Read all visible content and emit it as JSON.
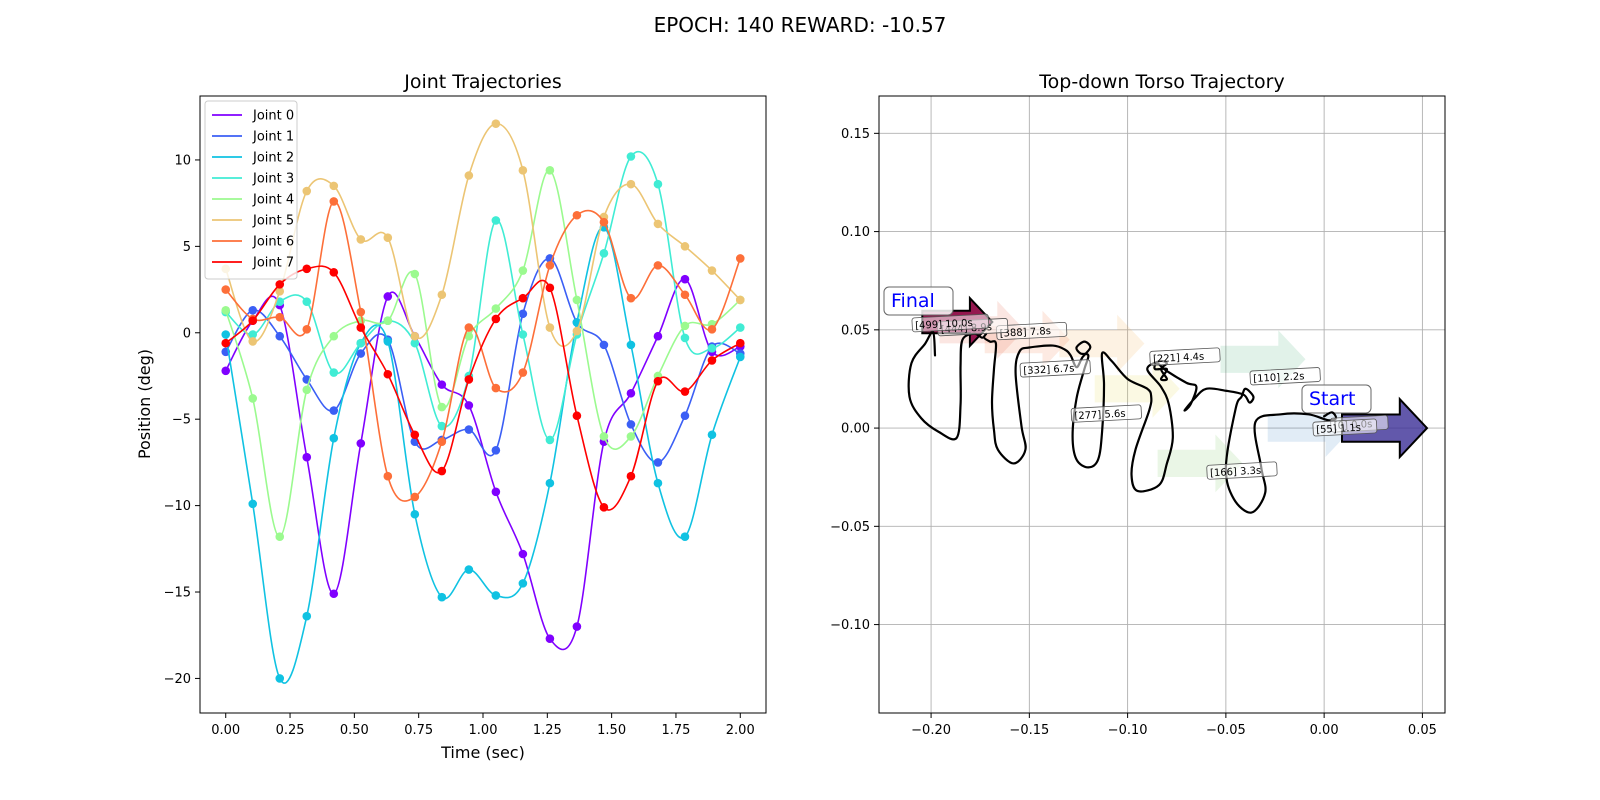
{
  "figure": {
    "suptitle": "EPOCH: 140 REWARD: -10.57"
  },
  "chart_data": [
    {
      "type": "line",
      "title": "Joint Trajectories",
      "xlabel": "Time (sec)",
      "ylabel": "Position (deg)",
      "xlim": [
        -0.1,
        2.1
      ],
      "ylim": [
        -22.0,
        13.7
      ],
      "xticks": [
        0.0,
        0.25,
        0.5,
        0.75,
        1.0,
        1.25,
        1.5,
        1.75,
        2.0
      ],
      "xtick_labels": [
        "0.00",
        "0.25",
        "0.50",
        "0.75",
        "1.00",
        "1.25",
        "1.50",
        "1.75",
        "2.00"
      ],
      "yticks": [
        -20,
        -15,
        -10,
        -5,
        0,
        5,
        10
      ],
      "ytick_labels": [
        "−20",
        "−15",
        "−10",
        "−5",
        "0",
        "5",
        "10"
      ],
      "grid": false,
      "legend_position": "upper-left",
      "marker_x": [
        0.0,
        0.105,
        0.21,
        0.315,
        0.42,
        0.525,
        0.63,
        0.735,
        0.84,
        0.945,
        1.05,
        1.155,
        1.26,
        1.365,
        1.47,
        1.575,
        1.68,
        1.785,
        1.89,
        2.0
      ],
      "series": [
        {
          "name": "Joint 0",
          "color": "#8000ff",
          "values": [
            -2.2,
            0.7,
            1.6,
            -7.2,
            -15.1,
            -6.4,
            2.1,
            -0.2,
            -3.0,
            -4.2,
            -9.2,
            -12.8,
            -17.7,
            -17.0,
            -6.3,
            -3.5,
            -0.2,
            3.1,
            -1.1,
            -0.8
          ]
        },
        {
          "name": "Joint 1",
          "color": "#3b5ff5",
          "values": [
            -1.1,
            1.3,
            -0.2,
            -2.7,
            -4.5,
            -1.2,
            -0.4,
            -6.3,
            -6.2,
            -5.6,
            -6.8,
            1.1,
            4.3,
            0.6,
            -0.7,
            -5.3,
            -7.5,
            -4.8,
            -0.8,
            -1.2
          ]
        },
        {
          "name": "Joint 2",
          "color": "#10c2e2",
          "values": [
            -0.1,
            -9.9,
            -20.0,
            -16.4,
            -6.1,
            -0.6,
            -0.5,
            -10.5,
            -15.3,
            -13.7,
            -15.2,
            -14.5,
            -8.7,
            0.6,
            6.1,
            -0.7,
            -8.7,
            -11.8,
            -5.9,
            -1.4
          ]
        },
        {
          "name": "Joint 3",
          "color": "#40ecd4",
          "values": [
            1.2,
            -0.1,
            1.8,
            1.8,
            -2.3,
            -0.6,
            0.7,
            -0.6,
            -5.4,
            -2.5,
            6.5,
            -0.1,
            -6.2,
            -0.1,
            4.6,
            10.2,
            8.6,
            -0.3,
            -0.9,
            0.3
          ]
        },
        {
          "name": "Joint 4",
          "color": "#9bfa8f",
          "values": [
            1.3,
            -3.8,
            -11.8,
            -3.3,
            -0.2,
            0.7,
            0.7,
            3.4,
            -4.3,
            -0.2,
            1.4,
            3.6,
            9.4,
            1.9,
            -6.0,
            -6.0,
            -2.5,
            0.4,
            0.5,
            1.9
          ]
        },
        {
          "name": "Joint 5",
          "color": "#ecc574",
          "values": [
            3.7,
            -0.5,
            2.4,
            8.2,
            8.5,
            5.4,
            5.5,
            -0.2,
            2.2,
            9.1,
            12.1,
            9.4,
            0.3,
            0.1,
            6.7,
            8.6,
            6.3,
            5.0,
            3.6,
            1.9
          ]
        },
        {
          "name": "Joint 6",
          "color": "#fd6f39",
          "values": [
            2.5,
            0.8,
            0.9,
            0.2,
            7.6,
            1.2,
            -8.3,
            -9.5,
            -6.3,
            0.3,
            -3.2,
            -2.3,
            3.9,
            6.8,
            6.4,
            2.0,
            3.9,
            2.2,
            0.2,
            4.3
          ]
        },
        {
          "name": "Joint 7",
          "color": "#ff0000",
          "values": [
            -0.6,
            0.7,
            2.8,
            3.7,
            3.5,
            0.3,
            -2.4,
            -5.9,
            -8.0,
            -2.7,
            0.8,
            2.0,
            2.6,
            -4.8,
            -10.1,
            -8.3,
            -2.8,
            -3.4,
            -1.6,
            -0.6
          ]
        }
      ]
    },
    {
      "type": "line",
      "title": "Top-down Torso Trajectory",
      "xlabel": "",
      "ylabel": "",
      "xlim": [
        -0.2265,
        0.0615
      ],
      "ylim": [
        -0.145,
        0.169
      ],
      "xticks": [
        -0.2,
        -0.15,
        -0.1,
        -0.05,
        0.0,
        0.05
      ],
      "xtick_labels": [
        "−0.20",
        "−0.15",
        "−0.10",
        "−0.05",
        "0.00",
        "0.05"
      ],
      "yticks": [
        -0.1,
        -0.05,
        0.0,
        0.05,
        0.1,
        0.15
      ],
      "ytick_labels": [
        "−0.10",
        "−0.05",
        "0.00",
        "0.05",
        "0.10",
        "0.15"
      ],
      "grid": true,
      "path_color": "#000000",
      "path": [
        [
          0.0,
          0.006
        ],
        [
          0.004,
          0.008
        ],
        [
          0.006,
          0.005
        ],
        [
          0.002,
          0.004
        ],
        [
          -0.008,
          0.007
        ],
        [
          -0.022,
          0.007
        ],
        [
          -0.035,
          0.003
        ],
        [
          -0.032,
          -0.02
        ],
        [
          -0.03,
          -0.033
        ],
        [
          -0.037,
          -0.043
        ],
        [
          -0.046,
          -0.036
        ],
        [
          -0.05,
          -0.02
        ],
        [
          -0.045,
          0.01
        ],
        [
          -0.042,
          0.016
        ],
        [
          -0.04,
          0.02
        ],
        [
          -0.036,
          0.016
        ],
        [
          -0.038,
          0.013
        ],
        [
          -0.041,
          0.017
        ],
        [
          -0.05,
          0.019
        ],
        [
          -0.06,
          0.02
        ],
        [
          -0.066,
          0.015
        ],
        [
          -0.071,
          0.009
        ],
        [
          -0.068,
          0.012
        ],
        [
          -0.065,
          0.021
        ],
        [
          -0.07,
          0.023
        ],
        [
          -0.08,
          0.029
        ],
        [
          -0.085,
          0.033
        ],
        [
          -0.086,
          0.03
        ],
        [
          -0.08,
          0.03
        ],
        [
          -0.083,
          0.025
        ],
        [
          -0.08,
          0.025
        ],
        [
          -0.083,
          0.03
        ],
        [
          -0.08,
          0.033
        ],
        [
          -0.084,
          0.034
        ],
        [
          -0.09,
          0.03
        ],
        [
          -0.083,
          0.021
        ],
        [
          -0.079,
          0.012
        ],
        [
          -0.077,
          -0.005
        ],
        [
          -0.08,
          -0.018
        ],
        [
          -0.084,
          -0.029
        ],
        [
          -0.095,
          -0.032
        ],
        [
          -0.098,
          -0.024
        ],
        [
          -0.096,
          -0.011
        ],
        [
          -0.089,
          0.009
        ],
        [
          -0.088,
          0.016
        ],
        [
          -0.09,
          0.02
        ],
        [
          -0.1,
          0.025
        ],
        [
          -0.108,
          0.034
        ],
        [
          -0.113,
          0.038
        ],
        [
          -0.112,
          0.022
        ],
        [
          -0.113,
          -0.002
        ],
        [
          -0.115,
          -0.016
        ],
        [
          -0.12,
          -0.02
        ],
        [
          -0.126,
          -0.016
        ],
        [
          -0.128,
          -0.004
        ],
        [
          -0.126,
          0.015
        ],
        [
          -0.122,
          0.03
        ],
        [
          -0.12,
          0.037
        ],
        [
          -0.124,
          0.038
        ],
        [
          -0.126,
          0.041
        ],
        [
          -0.122,
          0.044
        ],
        [
          -0.119,
          0.041
        ],
        [
          -0.123,
          0.036
        ],
        [
          -0.126,
          0.031
        ],
        [
          -0.129,
          0.037
        ],
        [
          -0.132,
          0.04
        ],
        [
          -0.138,
          0.042
        ],
        [
          -0.15,
          0.041
        ],
        [
          -0.155,
          0.039
        ],
        [
          -0.157,
          0.028
        ],
        [
          -0.154,
          0.001
        ],
        [
          -0.152,
          -0.011
        ],
        [
          -0.158,
          -0.018
        ],
        [
          -0.166,
          -0.011
        ],
        [
          -0.168,
          -0.001
        ],
        [
          -0.169,
          0.013
        ],
        [
          -0.168,
          0.03
        ],
        [
          -0.167,
          0.043
        ],
        [
          -0.17,
          0.044
        ],
        [
          -0.173,
          0.046
        ],
        [
          -0.172,
          0.048
        ],
        [
          -0.174,
          0.046
        ],
        [
          -0.178,
          0.048
        ],
        [
          -0.184,
          0.045
        ],
        [
          -0.185,
          0.032
        ],
        [
          -0.185,
          0.012
        ],
        [
          -0.187,
          -0.005
        ],
        [
          -0.196,
          -0.002
        ],
        [
          -0.205,
          0.005
        ],
        [
          -0.211,
          0.016
        ],
        [
          -0.21,
          0.033
        ],
        [
          -0.203,
          0.043
        ],
        [
          -0.199,
          0.049
        ],
        [
          -0.198,
          0.037
        ]
      ],
      "arrows": [
        {
          "label": "Start",
          "x": 0.004,
          "y": 0.0,
          "color": "#3b2e96"
        },
        {
          "label": "Final",
          "x": -0.206,
          "y": 0.054,
          "color": "#8e0b46"
        }
      ],
      "faded_arrows": [
        {
          "x": -0.016,
          "y": 0.0,
          "color": "#2878c0"
        },
        {
          "x": -0.04,
          "y": 0.035,
          "color": "#2aa064"
        },
        {
          "x": -0.072,
          "y": -0.018,
          "color": "#6cbd4e"
        },
        {
          "x": -0.104,
          "y": 0.02,
          "color": "#e5d33a"
        },
        {
          "x": -0.122,
          "y": 0.043,
          "color": "#f0a43a"
        },
        {
          "x": -0.16,
          "y": 0.045,
          "color": "#ef6a35"
        },
        {
          "x": -0.183,
          "y": 0.05,
          "color": "#e04c34"
        }
      ],
      "annotations": [
        {
          "text": "[0] 0.0s",
          "x": 0.005,
          "y": 0.0
        },
        {
          "text": "[55] 1.1s",
          "x": -0.004,
          "y": -0.002
        },
        {
          "text": "[110] 2.2s",
          "x": -0.036,
          "y": 0.024
        },
        {
          "text": "[166] 3.3s",
          "x": -0.058,
          "y": -0.024
        },
        {
          "text": "[221] 4.4s",
          "x": -0.087,
          "y": 0.034
        },
        {
          "text": "[277] 5.6s",
          "x": -0.127,
          "y": 0.005
        },
        {
          "text": "[332] 6.7s",
          "x": -0.153,
          "y": 0.028
        },
        {
          "text": "[388] 7.8s",
          "x": -0.165,
          "y": 0.047
        },
        {
          "text": "[444] 8.9s",
          "x": -0.195,
          "y": 0.049
        },
        {
          "text": "[499] 10.0s",
          "x": -0.208,
          "y": 0.051
        }
      ]
    }
  ]
}
